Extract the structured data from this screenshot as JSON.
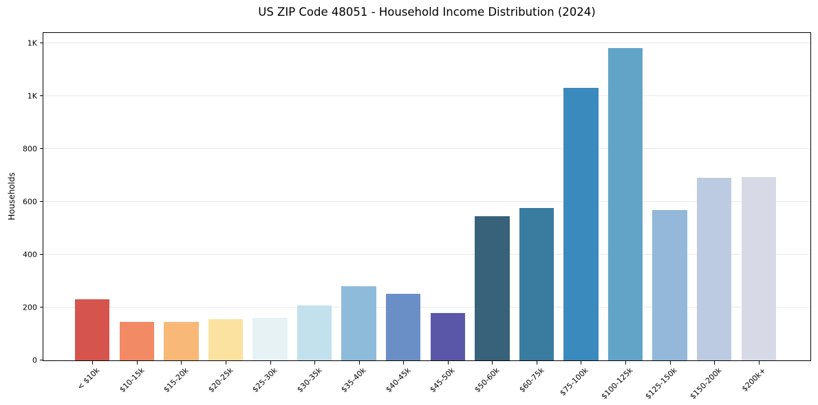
{
  "chart_data": {
    "type": "bar",
    "title": "US ZIP Code 48051 - Household Income Distribution (2024)",
    "xlabel": "",
    "ylabel": "Households",
    "ylim": [
      0,
      1240
    ],
    "grid": "horizontal",
    "legend": "none",
    "background": "#ffffff",
    "gridline_color": "#eaeaea",
    "spine_color": "#000000",
    "yticks": [
      {
        "value": 0,
        "label": "0"
      },
      {
        "value": 200,
        "label": "200"
      },
      {
        "value": 400,
        "label": "400"
      },
      {
        "value": 600,
        "label": "600"
      },
      {
        "value": 800,
        "label": "800"
      },
      {
        "value": 1000,
        "label": "1K"
      },
      {
        "value": 1200,
        "label": "1K"
      }
    ],
    "categories": [
      "< $10k",
      "$10-15k",
      "$15-20k",
      "$20-25k",
      "$25-30k",
      "$30-35k",
      "$35-40k",
      "$40-45k",
      "$45-50k",
      "$50-60k",
      "$60-75k",
      "$75-100k",
      "$100-125k",
      "$125-150k",
      "$150-200k",
      "$200k+"
    ],
    "values": [
      232,
      145,
      145,
      157,
      160,
      209,
      281,
      251,
      180,
      545,
      576,
      1033,
      1183,
      570,
      691,
      694
    ],
    "bar_colors": [
      "#d5544e",
      "#f18a65",
      "#f8b878",
      "#fce2a0",
      "#e6f2f4",
      "#c2e1ec",
      "#8fbbdb",
      "#6a8fc6",
      "#5a57a9",
      "#38617a",
      "#3a7ba0",
      "#3a8abd",
      "#62a4c8",
      "#93b8da",
      "#bdcbe2",
      "#d8d9e6"
    ]
  }
}
